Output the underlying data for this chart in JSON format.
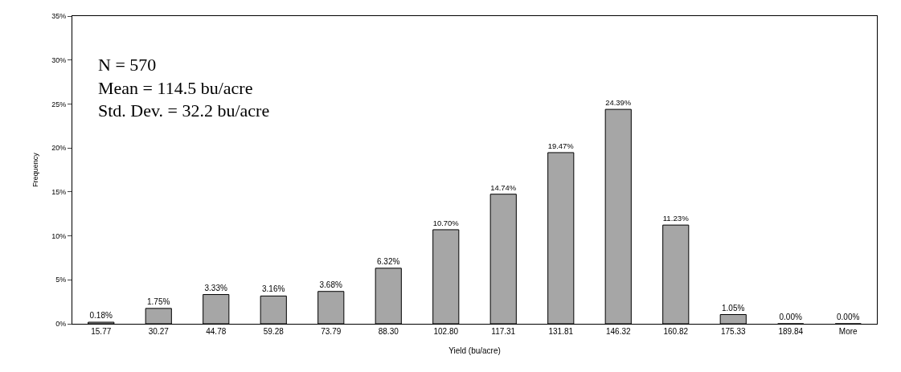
{
  "chart_data": {
    "type": "bar",
    "xlabel": "Yield (bu/acre)",
    "ylabel": "Frequency",
    "categories": [
      "15.77",
      "30.27",
      "44.78",
      "59.28",
      "73.79",
      "88.30",
      "102.80",
      "117.31",
      "131.81",
      "146.32",
      "160.82",
      "175.33",
      "189.84",
      "More"
    ],
    "values": [
      0.18,
      1.75,
      3.33,
      3.16,
      3.68,
      6.32,
      10.7,
      14.74,
      19.47,
      24.39,
      11.23,
      1.05,
      0.0,
      0.0
    ],
    "value_labels": [
      "0.18%",
      "1.75%",
      "3.33%",
      "3.16%",
      "3.68%",
      "6.32%",
      "10.70%",
      "14.74%",
      "19.47%",
      "24.39%",
      "11.23%",
      "1.05%",
      "0.00%",
      "0.00%"
    ],
    "color": "#a6a6a6",
    "ylim": [
      0,
      35
    ],
    "yticks": [
      {
        "value": 0,
        "label": "0%"
      },
      {
        "value": 5,
        "label": "5%"
      },
      {
        "value": 10,
        "label": "10%"
      },
      {
        "value": 15,
        "label": "15%"
      },
      {
        "value": 20,
        "label": "20%"
      },
      {
        "value": 25,
        "label": "25%"
      },
      {
        "value": 30,
        "label": "30%"
      },
      {
        "value": 35,
        "label": "35%"
      }
    ],
    "annotations": [
      "N = 570",
      "Mean = 114.5 bu/acre",
      "Std. Dev. = 32.2 bu/acre"
    ],
    "grid": false,
    "legend": false
  }
}
